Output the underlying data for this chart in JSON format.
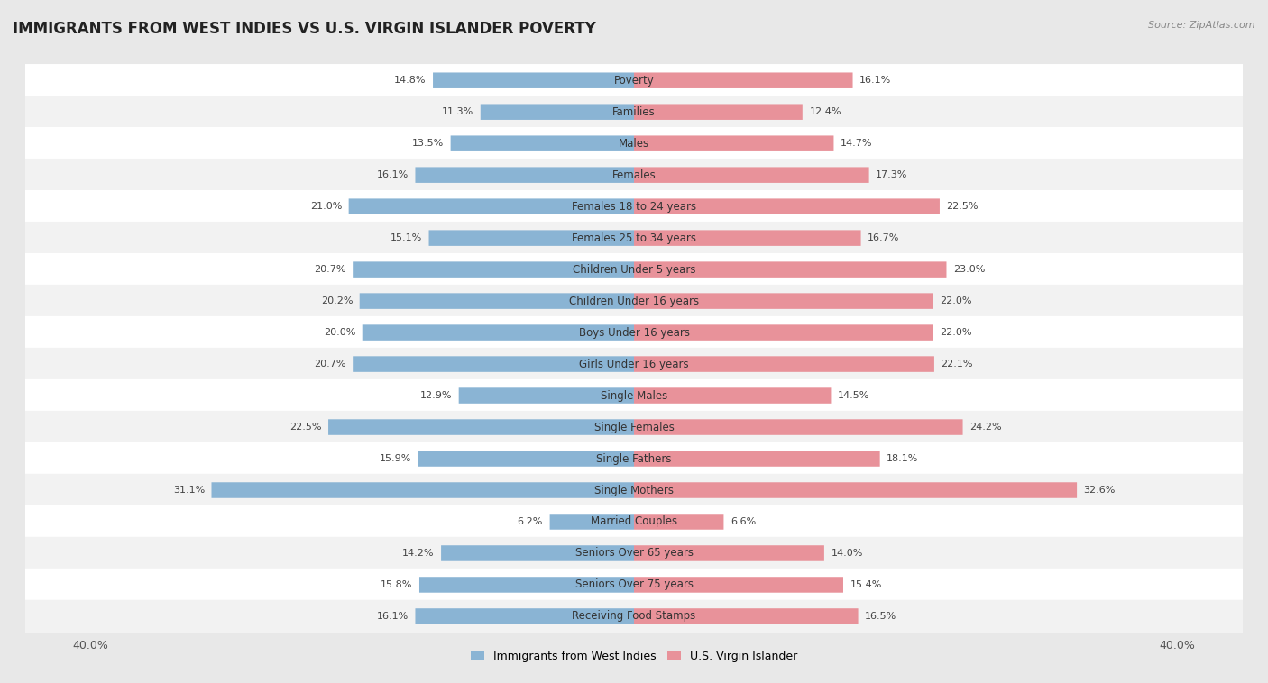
{
  "title": "IMMIGRANTS FROM WEST INDIES VS U.S. VIRGIN ISLANDER POVERTY",
  "source": "Source: ZipAtlas.com",
  "categories": [
    "Poverty",
    "Families",
    "Males",
    "Females",
    "Females 18 to 24 years",
    "Females 25 to 34 years",
    "Children Under 5 years",
    "Children Under 16 years",
    "Boys Under 16 years",
    "Girls Under 16 years",
    "Single Males",
    "Single Females",
    "Single Fathers",
    "Single Mothers",
    "Married Couples",
    "Seniors Over 65 years",
    "Seniors Over 75 years",
    "Receiving Food Stamps"
  ],
  "west_indies": [
    14.8,
    11.3,
    13.5,
    16.1,
    21.0,
    15.1,
    20.7,
    20.2,
    20.0,
    20.7,
    12.9,
    22.5,
    15.9,
    31.1,
    6.2,
    14.2,
    15.8,
    16.1
  ],
  "virgin_islander": [
    16.1,
    12.4,
    14.7,
    17.3,
    22.5,
    16.7,
    23.0,
    22.0,
    22.0,
    22.1,
    14.5,
    24.2,
    18.1,
    32.6,
    6.6,
    14.0,
    15.4,
    16.5
  ],
  "west_indies_color": "#8ab4d4",
  "virgin_islander_color": "#e8929a",
  "west_indies_label": "Immigrants from West Indies",
  "virgin_islander_label": "U.S. Virgin Islander",
  "background_color": "#e8e8e8",
  "row_color_even": "#f2f2f2",
  "row_color_odd": "#ffffff",
  "xlim": 40.0,
  "title_fontsize": 12,
  "label_fontsize": 8.5,
  "value_fontsize": 8,
  "bar_height": 0.5
}
